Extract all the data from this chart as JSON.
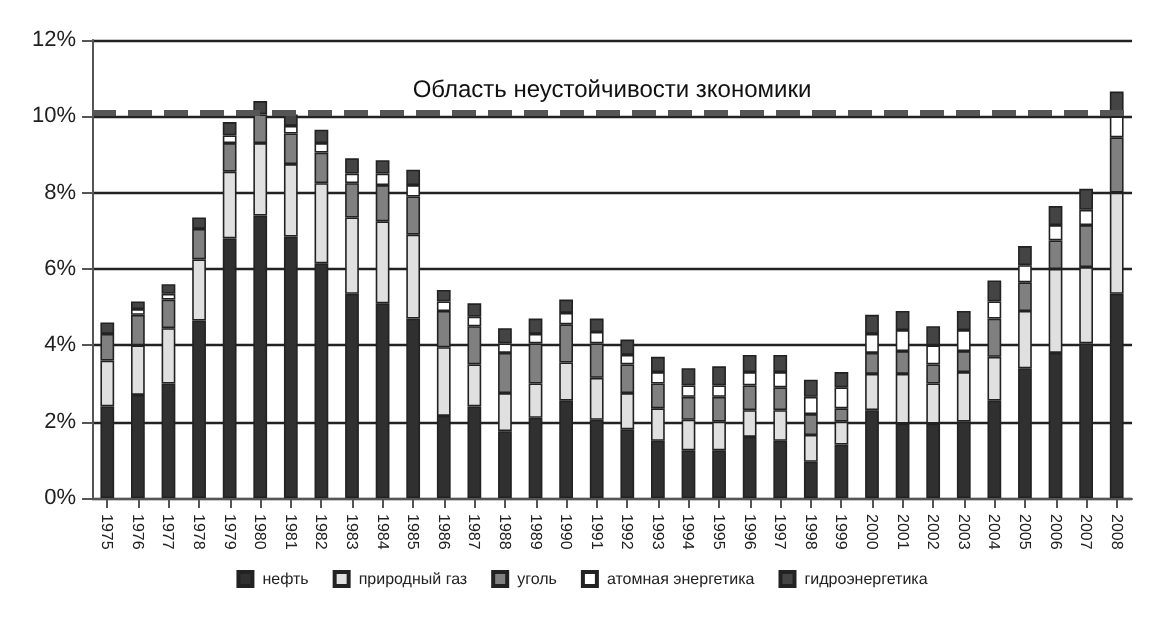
{
  "chart_data": {
    "type": "bar",
    "stacked": true,
    "categories": [
      "1975",
      "1976",
      "1977",
      "1978",
      "1979",
      "1980",
      "1981",
      "1982",
      "1983",
      "1984",
      "1985",
      "1986",
      "1987",
      "1988",
      "1989",
      "1990",
      "1991",
      "1992",
      "1993",
      "1994",
      "1995",
      "1996",
      "1997",
      "1998",
      "1999",
      "2000",
      "2001",
      "2002",
      "2003",
      "2004",
      "2005",
      "2006",
      "2007",
      "2008"
    ],
    "series": [
      {
        "name": "нефть",
        "color": "#303030",
        "values": [
          2.4,
          2.7,
          3.0,
          4.65,
          6.8,
          7.4,
          6.85,
          6.15,
          5.35,
          5.1,
          4.7,
          2.15,
          2.4,
          1.75,
          2.1,
          2.55,
          2.05,
          1.8,
          1.5,
          1.25,
          1.25,
          1.6,
          1.5,
          0.95,
          1.4,
          2.3,
          1.95,
          1.95,
          2.0,
          2.55,
          3.4,
          3.8,
          4.05,
          5.35
        ]
      },
      {
        "name": "природный газ",
        "color": "#e0e0e0",
        "values": [
          1.2,
          1.3,
          1.45,
          1.6,
          1.75,
          1.9,
          1.9,
          2.1,
          2.0,
          2.15,
          2.2,
          1.8,
          1.1,
          1.0,
          0.9,
          1.0,
          1.1,
          0.95,
          0.85,
          0.8,
          0.75,
          0.7,
          0.8,
          0.7,
          0.6,
          0.95,
          1.3,
          1.05,
          1.3,
          1.15,
          1.5,
          2.2,
          2.0,
          2.65
        ]
      },
      {
        "name": "уголь",
        "color": "#808080",
        "values": [
          0.7,
          0.8,
          0.75,
          0.8,
          0.75,
          0.75,
          0.8,
          0.8,
          0.9,
          0.95,
          1.0,
          0.95,
          1.0,
          1.05,
          1.05,
          1.0,
          0.9,
          0.75,
          0.65,
          0.6,
          0.65,
          0.65,
          0.6,
          0.55,
          0.35,
          0.55,
          0.6,
          0.5,
          0.55,
          1.0,
          0.75,
          0.75,
          1.1,
          1.45
        ]
      },
      {
        "name": "атомная энергетика",
        "color": "#ffffff",
        "values": [
          null,
          0.15,
          0.15,
          null,
          0.2,
          null,
          0.2,
          0.25,
          0.25,
          0.3,
          0.3,
          0.25,
          0.25,
          0.25,
          0.25,
          0.3,
          0.3,
          0.25,
          0.3,
          0.3,
          0.3,
          0.35,
          0.4,
          0.45,
          0.55,
          0.5,
          0.55,
          0.5,
          0.55,
          0.45,
          0.45,
          0.4,
          0.4,
          0.55
        ]
      },
      {
        "name": "гидроэнергетика",
        "color": "#444444",
        "values": [
          0.3,
          0.2,
          0.25,
          0.3,
          0.35,
          0.35,
          0.3,
          0.35,
          0.4,
          0.35,
          0.4,
          0.3,
          0.35,
          0.4,
          0.4,
          0.35,
          0.35,
          0.4,
          0.4,
          0.45,
          0.5,
          0.45,
          0.45,
          0.45,
          0.4,
          0.5,
          0.5,
          0.5,
          0.5,
          0.55,
          0.5,
          0.5,
          0.55,
          0.65
        ]
      }
    ],
    "ylim": [
      0,
      12
    ],
    "yticks": [
      {
        "value": 0,
        "label": "0%"
      },
      {
        "value": 2,
        "label": "2%"
      },
      {
        "value": 4,
        "label": "4%"
      },
      {
        "value": 6,
        "label": "6%"
      },
      {
        "value": 8,
        "label": "8%"
      },
      {
        "value": 10,
        "label": "10%"
      },
      {
        "value": 12,
        "label": "12%"
      }
    ],
    "grid": "y",
    "legend": "bottom",
    "ref_lines": [
      {
        "axis": "y",
        "value": 10.1,
        "label": "Область неустойчивости зкономики",
        "color": "#555555",
        "line_style": "dashed"
      }
    ]
  }
}
